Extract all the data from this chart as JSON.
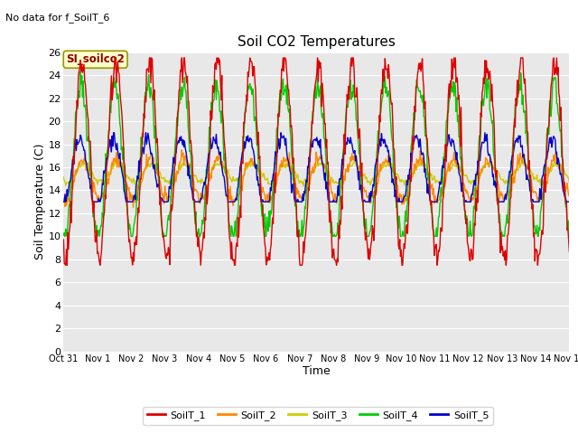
{
  "title": "Soil CO2 Temperatures",
  "no_data_text": "No data for f_SoilT_6",
  "station_label": "SI_soilco2",
  "xlabel": "Time",
  "ylabel": "Soil Temperature (C)",
  "ylim": [
    0,
    26
  ],
  "yticks": [
    0,
    2,
    4,
    6,
    8,
    10,
    12,
    14,
    16,
    18,
    20,
    22,
    24,
    26
  ],
  "xtick_labels": [
    "Oct 31",
    "Nov 1",
    "Nov 2",
    "Nov 3",
    "Nov 4",
    "Nov 5",
    "Nov 6",
    "Nov 7",
    "Nov 8",
    "Nov 9",
    "Nov 10",
    "Nov 11",
    "Nov 12",
    "Nov 13",
    "Nov 14",
    "Nov 15"
  ],
  "fig_bg": "#ffffff",
  "plot_bg": "#e8e8e8",
  "grid_color": "#d0d0d0",
  "colors": {
    "SoilT_1": "#dd0000",
    "SoilT_2": "#ff8800",
    "SoilT_3": "#cccc00",
    "SoilT_4": "#00cc00",
    "SoilT_5": "#0000cc"
  },
  "linewidth": 1.0,
  "num_days": 15,
  "ppd": 48
}
